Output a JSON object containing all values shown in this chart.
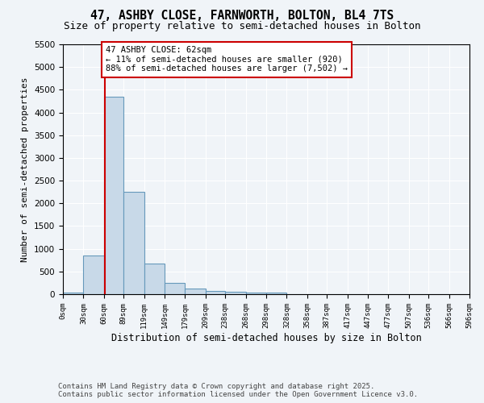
{
  "title_line1": "47, ASHBY CLOSE, FARNWORTH, BOLTON, BL4 7TS",
  "title_line2": "Size of property relative to semi-detached houses in Bolton",
  "xlabel": "Distribution of semi-detached houses by size in Bolton",
  "ylabel": "Number of semi-detached properties",
  "bin_edges": [
    0,
    30,
    60,
    89,
    119,
    149,
    179,
    209,
    238,
    268,
    298,
    328,
    358,
    387,
    417,
    447,
    477,
    507,
    536,
    566,
    596
  ],
  "bar_heights": [
    30,
    850,
    4350,
    2250,
    680,
    240,
    120,
    65,
    60,
    40,
    30,
    0,
    0,
    0,
    0,
    0,
    0,
    0,
    0,
    0
  ],
  "bar_color": "#c8d9e8",
  "bar_edge_color": "#6699bb",
  "property_line_x": 62,
  "property_line_color": "#cc0000",
  "annotation_text": "47 ASHBY CLOSE: 62sqm\n← 11% of semi-detached houses are smaller (920)\n88% of semi-detached houses are larger (7,502) →",
  "annotation_box_color": "white",
  "annotation_box_edge_color": "#cc0000",
  "ylim": [
    0,
    5500
  ],
  "yticks": [
    0,
    500,
    1000,
    1500,
    2000,
    2500,
    3000,
    3500,
    4000,
    4500,
    5000,
    5500
  ],
  "tick_labels": [
    "0sqm",
    "30sqm",
    "60sqm",
    "89sqm",
    "119sqm",
    "149sqm",
    "179sqm",
    "209sqm",
    "238sqm",
    "268sqm",
    "298sqm",
    "328sqm",
    "358sqm",
    "387sqm",
    "417sqm",
    "447sqm",
    "477sqm",
    "507sqm",
    "536sqm",
    "566sqm",
    "596sqm"
  ],
  "bg_color": "#f0f4f8",
  "grid_color": "white",
  "footer_text": "Contains HM Land Registry data © Crown copyright and database right 2025.\nContains public sector information licensed under the Open Government Licence v3.0.",
  "title_fontsize": 10.5,
  "subtitle_fontsize": 9,
  "annotation_fontsize": 7.5,
  "footer_fontsize": 6.5,
  "ylabel_fontsize": 8,
  "xlabel_fontsize": 8.5,
  "tick_fontsize": 6.5,
  "ytick_fontsize": 7.5
}
